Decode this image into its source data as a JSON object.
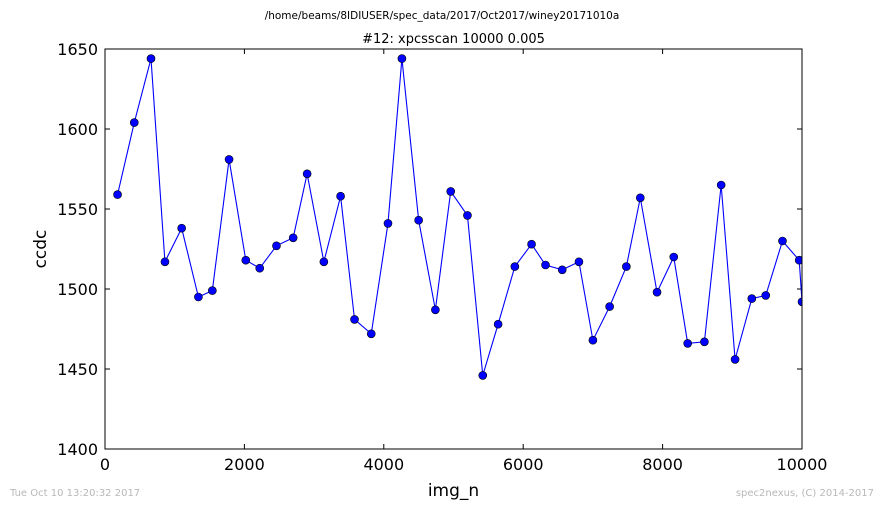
{
  "chart_data": {
    "type": "line",
    "suptitle": "/home/beams/8IDIUSER/spec_data/2017/Oct2017/winey20171010a",
    "title": "#12: xpcsscan 10000 0.005",
    "xlabel": "img_n",
    "ylabel": "ccdc",
    "xlim": [
      0,
      10000
    ],
    "ylim": [
      1400,
      1650
    ],
    "xticks": [
      0,
      2000,
      4000,
      6000,
      8000,
      10000
    ],
    "yticks": [
      1400,
      1450,
      1500,
      1550,
      1600,
      1650
    ],
    "grid": false,
    "legend": "none",
    "series": [
      {
        "color": "#0000ff",
        "marker": "circle",
        "points": [
          [
            180,
            1559
          ],
          [
            420,
            1604
          ],
          [
            660,
            1644
          ],
          [
            860,
            1517
          ],
          [
            1100,
            1538
          ],
          [
            1340,
            1495
          ],
          [
            1540,
            1499
          ],
          [
            1780,
            1581
          ],
          [
            2020,
            1518
          ],
          [
            2220,
            1513
          ],
          [
            2460,
            1527
          ],
          [
            2700,
            1532
          ],
          [
            2900,
            1572
          ],
          [
            3140,
            1517
          ],
          [
            3380,
            1558
          ],
          [
            3580,
            1481
          ],
          [
            3820,
            1472
          ],
          [
            4060,
            1541
          ],
          [
            4260,
            1644
          ],
          [
            4500,
            1543
          ],
          [
            4740,
            1487
          ],
          [
            4960,
            1561
          ],
          [
            5200,
            1546
          ],
          [
            5420,
            1446
          ],
          [
            5640,
            1478
          ],
          [
            5880,
            1514
          ],
          [
            6120,
            1528
          ],
          [
            6320,
            1515
          ],
          [
            6560,
            1512
          ],
          [
            6800,
            1517
          ],
          [
            7000,
            1468
          ],
          [
            7240,
            1489
          ],
          [
            7480,
            1514
          ],
          [
            7680,
            1557
          ],
          [
            7920,
            1498
          ],
          [
            8160,
            1520
          ],
          [
            8360,
            1466
          ],
          [
            8600,
            1467
          ],
          [
            8840,
            1565
          ],
          [
            9040,
            1456
          ],
          [
            9280,
            1494
          ],
          [
            9480,
            1496
          ],
          [
            9720,
            1530
          ],
          [
            9960,
            1518
          ],
          [
            10000,
            1492
          ]
        ]
      }
    ]
  },
  "footer": {
    "left": "Tue Oct 10 13:20:32 2017",
    "right": "spec2nexus, (C) 2014-2017"
  },
  "colors": {
    "line": "#0000ff",
    "marker_edge": "#000000",
    "footer_text": "#b8b8b8"
  }
}
